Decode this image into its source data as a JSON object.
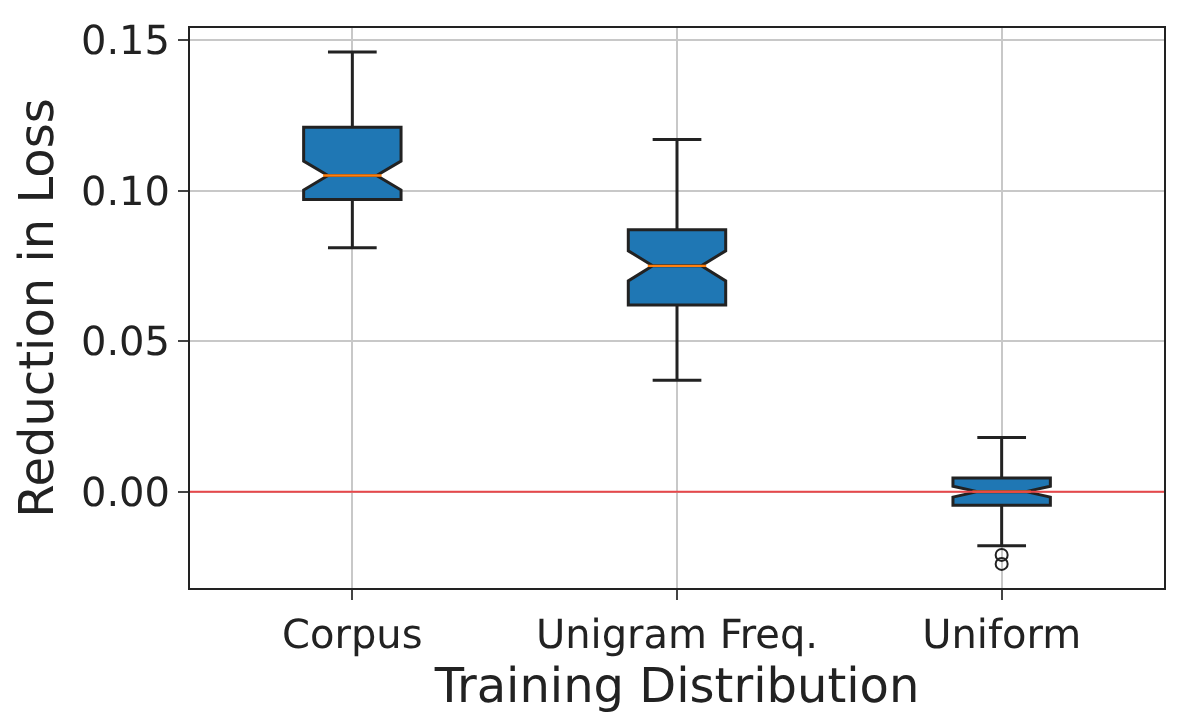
{
  "chart_data": {
    "type": "box",
    "xlabel": "Training Distribution",
    "ylabel": "Reduction in Loss",
    "categories": [
      "Corpus",
      "Unigram Freq.",
      "Uniform"
    ],
    "boxes": [
      {
        "low": 0.081,
        "q1": 0.097,
        "median": 0.105,
        "q3": 0.121,
        "high": 0.146
      },
      {
        "low": 0.037,
        "q1": 0.062,
        "median": 0.075,
        "q3": 0.087,
        "high": 0.117
      },
      {
        "low": -0.018,
        "q1": -0.0045,
        "median": 0.0,
        "q3": 0.0045,
        "high": 0.018,
        "outliers": [
          -0.021,
          -0.024
        ]
      }
    ],
    "color": "#1f77b4",
    "ylim": [
      -0.032,
      0.154
    ],
    "yticks": [
      {
        "value": 0,
        "label": "0.00"
      },
      {
        "value": 0.05,
        "label": "0.05"
      },
      {
        "value": 0.1,
        "label": "0.10"
      },
      {
        "value": 0.15,
        "label": "0.15"
      }
    ],
    "ref_lines": [
      {
        "axis": "y",
        "value": 0,
        "color": "#e8474a"
      }
    ],
    "grid": true
  }
}
